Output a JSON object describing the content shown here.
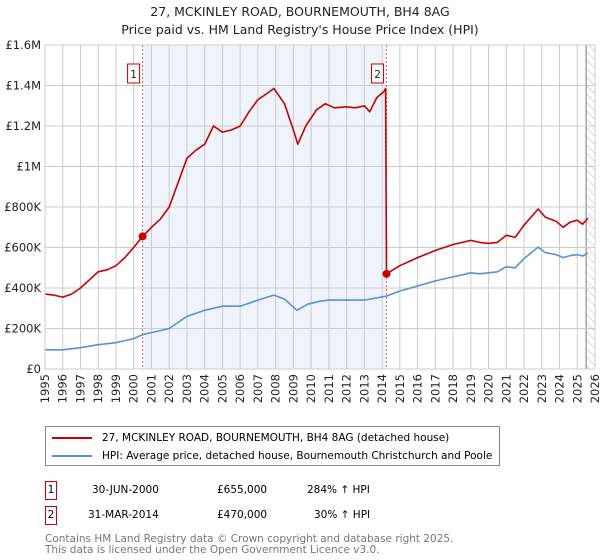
{
  "title_line1": "27, MCKINLEY ROAD, BOURNEMOUTH, BH4 8AG",
  "title_line2": "Price paid vs. HM Land Registry's House Price Index (HPI)",
  "chart_data": {
    "type": "line",
    "title": "27, MCKINLEY ROAD, BOURNEMOUTH, BH4 8AG — Price paid vs. HM Land Registry's House Price Index (HPI)",
    "xlim": [
      1995,
      2026
    ],
    "ylim": [
      0,
      1600000
    ],
    "x_ticks": [
      "1995",
      "1996",
      "1997",
      "1998",
      "1999",
      "2000",
      "2001",
      "2002",
      "2003",
      "2004",
      "2005",
      "2006",
      "2007",
      "2008",
      "2009",
      "2010",
      "2011",
      "2012",
      "2013",
      "2014",
      "2015",
      "2016",
      "2017",
      "2018",
      "2019",
      "2020",
      "2021",
      "2022",
      "2023",
      "2024",
      "2025",
      "2026"
    ],
    "y_ticks": [
      {
        "v": 0,
        "label": "£0"
      },
      {
        "v": 200000,
        "label": "£200K"
      },
      {
        "v": 400000,
        "label": "£400K"
      },
      {
        "v": 600000,
        "label": "£600K"
      },
      {
        "v": 800000,
        "label": "£800K"
      },
      {
        "v": 1000000,
        "label": "£1M"
      },
      {
        "v": 1200000,
        "label": "£1.2M"
      },
      {
        "v": 1400000,
        "label": "£1.4M"
      },
      {
        "v": 1600000,
        "label": "£1.6M"
      }
    ],
    "grid": true,
    "shaded_range": [
      2000.5,
      2014.25
    ],
    "hatched_from": 2025.5,
    "series": [
      {
        "name": "27, MCKINLEY ROAD, BOURNEMOUTH, BH4 8AG (detached house)",
        "color": "#cc0000",
        "points": [
          [
            1995,
            370000
          ],
          [
            1995.5,
            365000
          ],
          [
            1996,
            355000
          ],
          [
            1996.5,
            370000
          ],
          [
            1997,
            400000
          ],
          [
            1997.5,
            440000
          ],
          [
            1998,
            480000
          ],
          [
            1998.5,
            490000
          ],
          [
            1999,
            510000
          ],
          [
            1999.5,
            550000
          ],
          [
            2000,
            600000
          ],
          [
            2000.5,
            655000
          ],
          [
            2001,
            700000
          ],
          [
            2001.5,
            740000
          ],
          [
            2002,
            800000
          ],
          [
            2002.5,
            920000
          ],
          [
            2003,
            1040000
          ],
          [
            2003.5,
            1080000
          ],
          [
            2004,
            1110000
          ],
          [
            2004.5,
            1200000
          ],
          [
            2005,
            1170000
          ],
          [
            2005.5,
            1180000
          ],
          [
            2006,
            1200000
          ],
          [
            2006.5,
            1270000
          ],
          [
            2007,
            1330000
          ],
          [
            2007.5,
            1360000
          ],
          [
            2007.9,
            1385000
          ],
          [
            2008.5,
            1310000
          ],
          [
            2009,
            1180000
          ],
          [
            2009.25,
            1110000
          ],
          [
            2009.7,
            1200000
          ],
          [
            2010.3,
            1280000
          ],
          [
            2010.8,
            1310000
          ],
          [
            2011.3,
            1290000
          ],
          [
            2012,
            1295000
          ],
          [
            2012.5,
            1290000
          ],
          [
            2013,
            1300000
          ],
          [
            2013.3,
            1270000
          ],
          [
            2013.7,
            1340000
          ],
          [
            2014.1,
            1370000
          ],
          [
            2014.2,
            1385000
          ],
          [
            2014.25,
            470000
          ],
          [
            2015,
            510000
          ],
          [
            2016,
            550000
          ],
          [
            2017,
            585000
          ],
          [
            2018,
            615000
          ],
          [
            2019,
            635000
          ],
          [
            2019.5,
            625000
          ],
          [
            2020,
            620000
          ],
          [
            2020.5,
            625000
          ],
          [
            2021,
            660000
          ],
          [
            2021.5,
            650000
          ],
          [
            2022,
            710000
          ],
          [
            2022.8,
            790000
          ],
          [
            2023.2,
            750000
          ],
          [
            2023.8,
            730000
          ],
          [
            2024.2,
            700000
          ],
          [
            2024.6,
            725000
          ],
          [
            2025,
            735000
          ],
          [
            2025.3,
            715000
          ],
          [
            2025.6,
            745000
          ]
        ]
      },
      {
        "name": "HPI: Average price, detached house, Bournemouth Christchurch and Poole",
        "color": "#5b8fd6",
        "points": [
          [
            1995,
            95000
          ],
          [
            1996,
            95000
          ],
          [
            1997,
            105000
          ],
          [
            1998,
            120000
          ],
          [
            1999,
            130000
          ],
          [
            2000,
            150000
          ],
          [
            2000.5,
            170000
          ],
          [
            2001,
            180000
          ],
          [
            2002,
            200000
          ],
          [
            2003,
            260000
          ],
          [
            2004,
            290000
          ],
          [
            2005,
            310000
          ],
          [
            2006,
            310000
          ],
          [
            2007,
            340000
          ],
          [
            2007.9,
            365000
          ],
          [
            2008.5,
            345000
          ],
          [
            2009.2,
            290000
          ],
          [
            2009.8,
            320000
          ],
          [
            2010.5,
            335000
          ],
          [
            2011,
            340000
          ],
          [
            2012,
            340000
          ],
          [
            2013,
            340000
          ],
          [
            2014.25,
            360000
          ],
          [
            2015,
            385000
          ],
          [
            2016,
            410000
          ],
          [
            2017,
            435000
          ],
          [
            2018,
            455000
          ],
          [
            2019,
            475000
          ],
          [
            2019.5,
            470000
          ],
          [
            2020,
            475000
          ],
          [
            2020.5,
            480000
          ],
          [
            2021,
            505000
          ],
          [
            2021.5,
            500000
          ],
          [
            2022,
            545000
          ],
          [
            2022.8,
            602000
          ],
          [
            2023.2,
            575000
          ],
          [
            2023.8,
            565000
          ],
          [
            2024.2,
            550000
          ],
          [
            2024.6,
            560000
          ],
          [
            2025,
            565000
          ],
          [
            2025.3,
            558000
          ],
          [
            2025.6,
            573000
          ]
        ]
      }
    ],
    "markers": [
      {
        "label": "1",
        "x": 2000.5,
        "y": 655000
      },
      {
        "label": "2",
        "x": 2014.25,
        "y": 470000
      }
    ]
  },
  "legend": {
    "items": [
      {
        "label": "27, MCKINLEY ROAD, BOURNEMOUTH, BH4 8AG (detached house)",
        "color": "#cc0000"
      },
      {
        "label": "HPI: Average price, detached house, Bournemouth Christchurch and Poole",
        "color": "#5b8fd6"
      }
    ]
  },
  "transactions": [
    {
      "num": "1",
      "date": "30-JUN-2000",
      "price": "£655,000",
      "hpi": "284% ↑ HPI"
    },
    {
      "num": "2",
      "date": "31-MAR-2014",
      "price": "£470,000",
      "hpi": "30% ↑ HPI"
    }
  ],
  "footer": {
    "line1": "Contains HM Land Registry data © Crown copyright and database right 2025.",
    "line2": "This data is licensed under the Open Government Licence v3.0."
  }
}
